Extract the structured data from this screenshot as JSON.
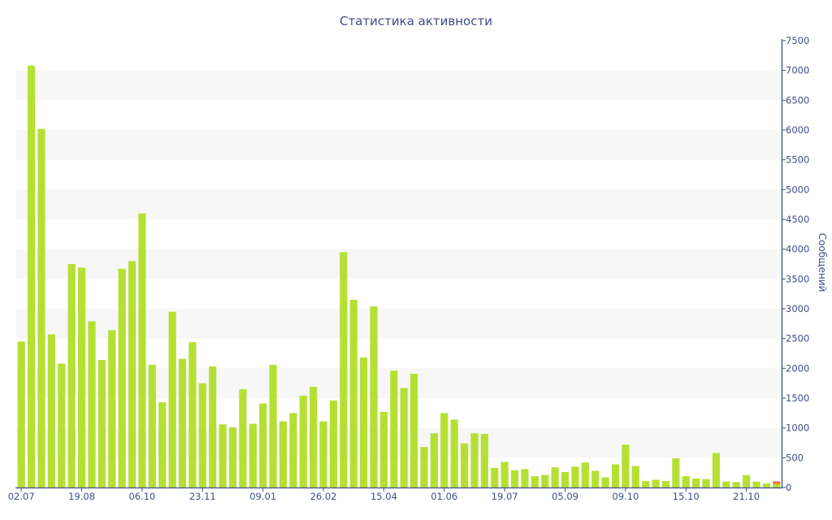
{
  "chart_data": {
    "type": "bar",
    "title": "Статистика активности",
    "ylabel": "Сообщений",
    "ylim": [
      0,
      7500
    ],
    "y_ticks": [
      0,
      500,
      1000,
      1500,
      2000,
      2500,
      3000,
      3500,
      4000,
      4500,
      5000,
      5500,
      6000,
      6500,
      7000,
      7500
    ],
    "y_axis_side": "right",
    "grid": "alternating horizontal bands",
    "x_tick_labels": [
      {
        "index": 0,
        "label": "02.07"
      },
      {
        "index": 6,
        "label": "19.08"
      },
      {
        "index": 12,
        "label": "06.10"
      },
      {
        "index": 18,
        "label": "23.11"
      },
      {
        "index": 24,
        "label": "09.01"
      },
      {
        "index": 30,
        "label": "26.02"
      },
      {
        "index": 36,
        "label": "15.04"
      },
      {
        "index": 42,
        "label": "01.06"
      },
      {
        "index": 48,
        "label": "19.07"
      },
      {
        "index": 54,
        "label": "05.09"
      },
      {
        "index": 60,
        "label": "09.10"
      },
      {
        "index": 66,
        "label": "15.10"
      },
      {
        "index": 72,
        "label": "21.10"
      }
    ],
    "series": [
      {
        "color": "#b5e033",
        "values": [
          2450,
          7080,
          6020,
          2570,
          2080,
          3750,
          3690,
          2790,
          2140,
          2640,
          3670,
          3800,
          4600,
          2060,
          1430,
          2950,
          2160,
          2440,
          1750,
          2030,
          1060,
          1010,
          1650,
          1070,
          1410,
          2060,
          1110,
          1250,
          1540,
          1690,
          1110,
          1460,
          3950,
          3150,
          2180,
          3040,
          1270,
          1960,
          1670,
          1910,
          680,
          910,
          1250,
          1140,
          740,
          910,
          900,
          330,
          430,
          290,
          310,
          190,
          210,
          340,
          260,
          350,
          420,
          280,
          170,
          390,
          720,
          360,
          110,
          130,
          110,
          490,
          190,
          150,
          140,
          580,
          100,
          90,
          210,
          100,
          70,
          50
        ]
      },
      {
        "color": "#d9a21d",
        "values": [
          0,
          0,
          0,
          0,
          0,
          0,
          0,
          0,
          0,
          0,
          0,
          0,
          0,
          0,
          0,
          0,
          0,
          0,
          0,
          0,
          0,
          0,
          0,
          0,
          0,
          0,
          0,
          0,
          0,
          0,
          0,
          0,
          0,
          0,
          0,
          0,
          0,
          0,
          0,
          0,
          0,
          0,
          0,
          0,
          0,
          0,
          0,
          0,
          0,
          0,
          0,
          0,
          0,
          0,
          0,
          0,
          0,
          0,
          0,
          0,
          0,
          0,
          0,
          0,
          0,
          0,
          0,
          0,
          0,
          0,
          0,
          0,
          0,
          0,
          0,
          30
        ]
      },
      {
        "color": "#e0463e",
        "values": [
          0,
          0,
          0,
          0,
          0,
          0,
          0,
          0,
          0,
          0,
          0,
          0,
          0,
          0,
          0,
          0,
          0,
          0,
          0,
          0,
          0,
          0,
          0,
          0,
          0,
          0,
          0,
          0,
          0,
          0,
          0,
          0,
          0,
          0,
          0,
          0,
          0,
          0,
          0,
          0,
          0,
          0,
          0,
          0,
          0,
          0,
          0,
          0,
          0,
          0,
          0,
          0,
          0,
          0,
          0,
          0,
          0,
          0,
          0,
          0,
          0,
          0,
          0,
          0,
          0,
          0,
          0,
          0,
          0,
          0,
          0,
          0,
          0,
          0,
          0,
          20
        ]
      }
    ],
    "colors": {
      "axis": "#3d4e86",
      "text": "#3d4e86",
      "band": "#f7f7f7"
    }
  }
}
